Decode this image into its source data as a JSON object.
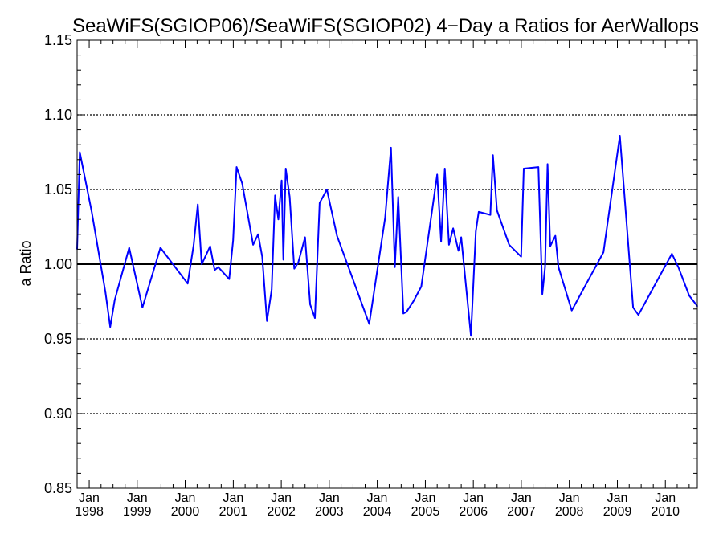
{
  "chart_data": {
    "type": "line",
    "title": "SeaWiFS(SGIOP06)/SeaWiFS(SGIOP02) 4−Day a Ratios for AerWallops",
    "xlabel": "",
    "ylabel": "a Ratio",
    "xlim": [
      "1997-10-01",
      "2010-09-01"
    ],
    "ylim": [
      0.85,
      1.15
    ],
    "y_ticks": [
      "0.85",
      "0.90",
      "0.95",
      "1.00",
      "1.05",
      "1.10",
      "1.15"
    ],
    "x_ticks": [
      {
        "month": "Jan",
        "year": "1998",
        "date": "1998-01-01"
      },
      {
        "month": "Jan",
        "year": "1999",
        "date": "1999-01-01"
      },
      {
        "month": "Jan",
        "year": "2000",
        "date": "2000-01-01"
      },
      {
        "month": "Jan",
        "year": "2001",
        "date": "2001-01-01"
      },
      {
        "month": "Jan",
        "year": "2002",
        "date": "2002-01-01"
      },
      {
        "month": "Jan",
        "year": "2003",
        "date": "2003-01-01"
      },
      {
        "month": "Jan",
        "year": "2004",
        "date": "2004-01-01"
      },
      {
        "month": "Jan",
        "year": "2005",
        "date": "2005-01-01"
      },
      {
        "month": "Jan",
        "year": "2006",
        "date": "2006-01-01"
      },
      {
        "month": "Jan",
        "year": "2007",
        "date": "2007-01-01"
      },
      {
        "month": "Jan",
        "year": "2008",
        "date": "2008-01-01"
      },
      {
        "month": "Jan",
        "year": "2009",
        "date": "2009-01-01"
      },
      {
        "month": "Jan",
        "year": "2010",
        "date": "2010-01-01"
      }
    ],
    "gridlines_dotted_at": [
      0.9,
      0.95,
      1.05,
      1.1
    ],
    "reference_line": {
      "y": 1.0,
      "color": "#000000"
    },
    "series": [
      {
        "color": "#0000ff",
        "x": [
          "1997-10-01",
          "1997-10-21",
          "1998-01-20",
          "1998-05-05",
          "1998-06-10",
          "1998-07-14",
          "1998-11-01",
          "1999-02-10",
          "1999-06-27",
          "2000-01-20",
          "2000-03-06",
          "2000-04-06",
          "2000-05-06",
          "2000-07-09",
          "2000-08-12",
          "2000-09-09",
          "2000-12-01",
          "2000-12-31",
          "2001-01-26",
          "2001-03-10",
          "2001-06-01",
          "2001-07-09",
          "2001-08-09",
          "2001-09-14",
          "2001-10-20",
          "2001-11-15",
          "2001-12-10",
          "2002-01-04",
          "2002-01-17",
          "2002-02-04",
          "2002-03-06",
          "2002-04-10",
          "2002-05-10",
          "2002-07-01",
          "2002-08-09",
          "2002-09-14",
          "2002-10-20",
          "2002-12-14",
          "2003-03-01",
          "2003-11-01",
          "2004-03-01",
          "2004-04-15",
          "2004-05-14",
          "2004-06-09",
          "2004-07-18",
          "2004-08-10",
          "2004-10-01",
          "2004-12-01",
          "2005-04-01",
          "2005-05-01",
          "2005-05-29",
          "2005-06-30",
          "2005-08-01",
          "2005-09-10",
          "2005-10-01",
          "2005-12-14",
          "2006-01-20",
          "2006-02-11",
          "2006-05-11",
          "2006-05-30",
          "2006-06-30",
          "2006-10-01",
          "2006-12-31",
          "2007-01-20",
          "2007-05-11",
          "2007-06-10",
          "2007-07-01",
          "2007-07-20",
          "2007-08-09",
          "2007-09-17",
          "2007-10-11",
          "2008-01-20",
          "2008-09-17",
          "2009-01-20",
          "2009-05-01",
          "2009-06-10",
          "2010-02-20",
          "2010-04-10",
          "2010-07-01",
          "2010-09-01"
        ],
        "y": [
          1.01,
          1.075,
          1.035,
          0.981,
          0.958,
          0.976,
          1.011,
          0.971,
          1.011,
          0.987,
          1.013,
          1.04,
          1.0,
          1.012,
          0.996,
          0.998,
          0.99,
          1.016,
          1.065,
          1.054,
          1.013,
          1.02,
          1.005,
          0.962,
          0.983,
          1.046,
          1.03,
          1.056,
          1.003,
          1.064,
          1.045,
          0.997,
          1.001,
          1.018,
          0.973,
          0.964,
          1.041,
          1.05,
          1.019,
          0.96,
          1.031,
          1.078,
          0.998,
          1.045,
          0.967,
          0.968,
          0.975,
          0.985,
          1.06,
          1.015,
          1.064,
          1.013,
          1.024,
          1.009,
          1.018,
          0.952,
          1.022,
          1.035,
          1.033,
          1.073,
          1.036,
          1.013,
          1.005,
          1.064,
          1.065,
          0.98,
          0.998,
          1.067,
          1.012,
          1.019,
          0.998,
          0.969,
          1.008,
          1.086,
          0.971,
          0.966,
          1.007,
          0.998,
          0.979,
          0.972
        ]
      }
    ]
  }
}
